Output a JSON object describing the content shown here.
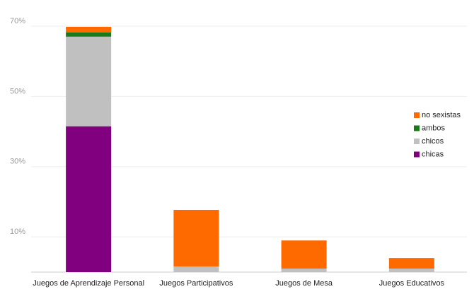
{
  "chart_data": {
    "type": "bar",
    "stacked": true,
    "categories": [
      "Juegos de Aprendizaje Personal",
      "Juegos Participativos",
      "Juegos de Mesa",
      "Juegos Educativos"
    ],
    "series": [
      {
        "name": "chicas",
        "color": "#800080",
        "values": [
          41.5,
          0,
          0,
          0
        ]
      },
      {
        "name": "chicos",
        "color": "#c0c0c0",
        "values": [
          25.5,
          1.6,
          1.0,
          1.0
        ]
      },
      {
        "name": "ambos",
        "color": "#1a7a1a",
        "values": [
          1.2,
          0,
          0,
          0
        ]
      },
      {
        "name": "no sexistas",
        "color": "#ff6a00",
        "values": [
          1.6,
          16.1,
          8.0,
          3.0
        ]
      }
    ],
    "ylim": [
      0,
      72
    ],
    "yticks": [
      {
        "value": 10,
        "label": "10%"
      },
      {
        "value": 30,
        "label": "30%"
      },
      {
        "value": 50,
        "label": "50%"
      },
      {
        "value": 70,
        "label": "70%"
      }
    ],
    "grid": true
  }
}
